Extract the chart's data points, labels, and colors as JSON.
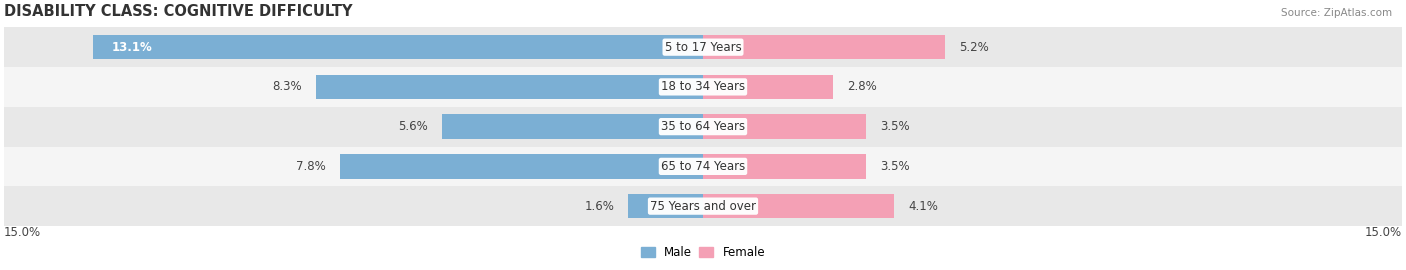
{
  "title": "DISABILITY CLASS: COGNITIVE DIFFICULTY",
  "source": "Source: ZipAtlas.com",
  "categories": [
    "5 to 17 Years",
    "18 to 34 Years",
    "35 to 64 Years",
    "65 to 74 Years",
    "75 Years and over"
  ],
  "male_values": [
    13.1,
    8.3,
    5.6,
    7.8,
    1.6
  ],
  "female_values": [
    5.2,
    2.8,
    3.5,
    3.5,
    4.1
  ],
  "male_color": "#7bafd4",
  "female_color": "#f4a0b5",
  "male_label": "Male",
  "female_label": "Female",
  "xlim": 15.0,
  "bar_height": 0.62,
  "bg_row_colors": [
    "#e8e8e8",
    "#f5f5f5",
    "#e8e8e8",
    "#f5f5f5",
    "#e8e8e8"
  ],
  "title_fontsize": 10.5,
  "label_fontsize": 8.5,
  "axis_label_fontsize": 8.5,
  "value_label_color_inside": "#ffffff",
  "value_label_color_outside": "#444444"
}
